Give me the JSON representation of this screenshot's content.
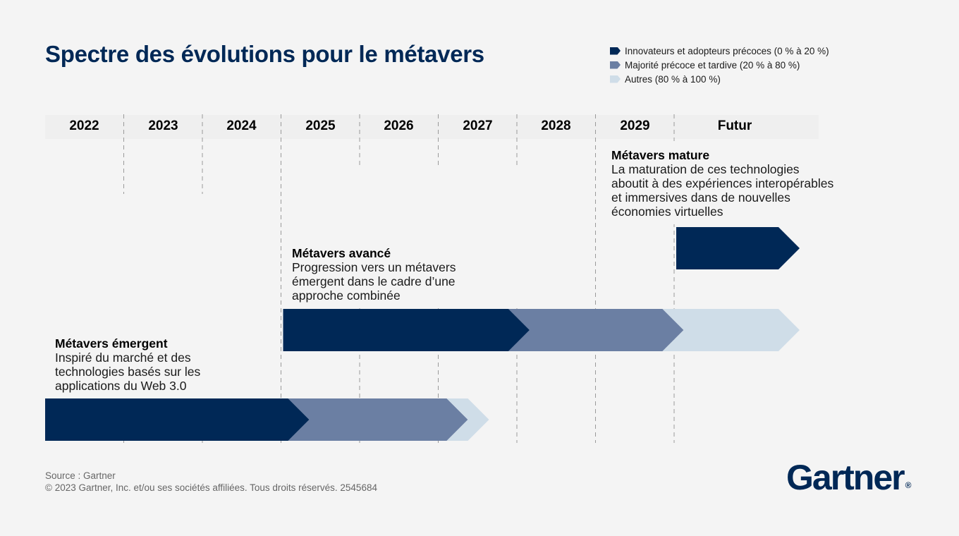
{
  "title": "Spectre des évolutions pour le métavers",
  "legend": [
    {
      "label": "Innovateurs et adopteurs précoces (0 % à 20 %)",
      "color": "#002856"
    },
    {
      "label": "Majorité précoce et tardive (20 % à 80 %)",
      "color": "#6b7fa3"
    },
    {
      "label": "Autres (80 % à 100 %)",
      "color": "#cfdde8"
    }
  ],
  "chart_data": {
    "type": "timeline",
    "periods": [
      "2022",
      "2023",
      "2024",
      "2025",
      "2026",
      "2027",
      "2028",
      "2029",
      "Futur"
    ],
    "phases": [
      {
        "name": "Métavers émergent",
        "description": [
          "Inspiré du marché et des",
          "technologies basés sur les",
          "applications du Web 3.0"
        ],
        "segments": [
          {
            "stage": "Innovateurs et adopteurs précoces (0 % à 20 %)",
            "from": "2022",
            "to": "2025"
          },
          {
            "stage": "Majorité précoce et tardive (20 % à 80 %)",
            "from": "2025",
            "to": "2027"
          },
          {
            "stage": "Autres (80 % à 100 %)",
            "from": "2027",
            "to": "2027"
          }
        ]
      },
      {
        "name": "Métavers avancé",
        "description": [
          "Progression vers un métavers",
          "émergent dans le cadre d’une",
          "approche combinée"
        ],
        "segments": [
          {
            "stage": "Innovateurs et adopteurs précoces (0 % à 20 %)",
            "from": "2025",
            "to": "2027"
          },
          {
            "stage": "Majorité précoce et tardive (20 % à 80 %)",
            "from": "2028",
            "to": "2029"
          },
          {
            "stage": "Autres (80 % à 100 %)",
            "from": "2029",
            "to": "Futur"
          }
        ]
      },
      {
        "name": "Métavers mature",
        "description": [
          "La maturation de ces technologies",
          "aboutit à des expériences interopérables",
          "et immersives dans de nouvelles",
          "économies virtuelles"
        ],
        "segments": [
          {
            "stage": "Innovateurs et adopteurs précoces (0 % à 20 %)",
            "from": "Futur",
            "to": "Futur"
          }
        ]
      }
    ]
  },
  "footer": {
    "source": "Source : Gartner",
    "copyright": "© 2023 Gartner, Inc. et/ou ses sociétés affiliées. Tous droits réservés. 2545684"
  },
  "logo": {
    "text": "Gartner",
    "mark": "®"
  }
}
